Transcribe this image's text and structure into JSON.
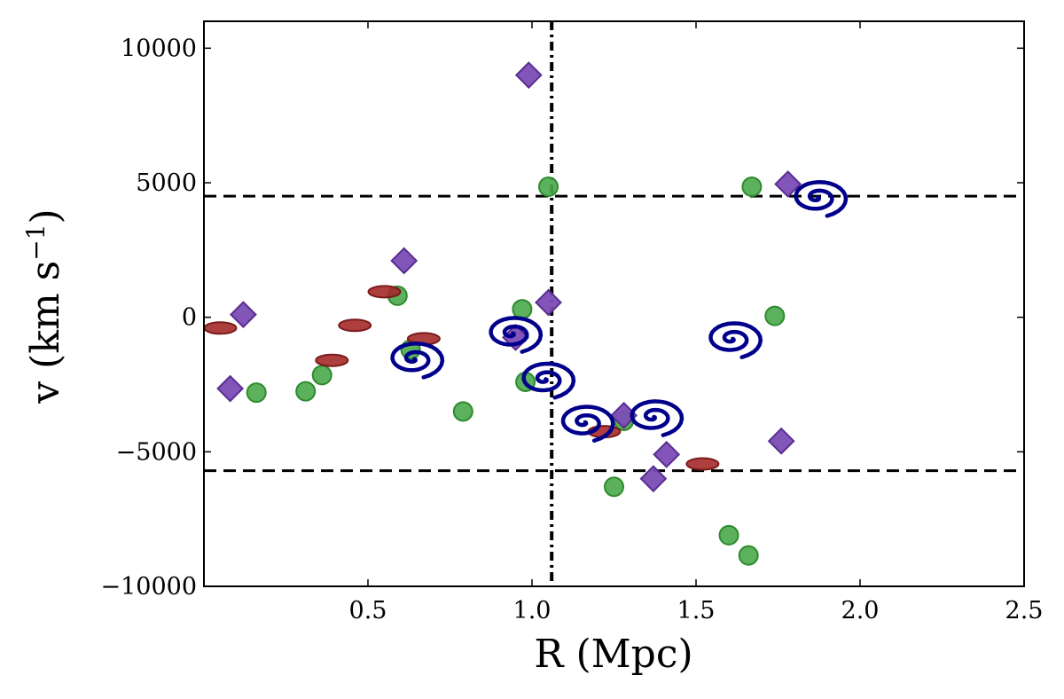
{
  "chart_data": {
    "type": "scatter",
    "title": "",
    "xlabel": "R (Mpc)",
    "ylabel_main": "v (km s",
    "ylabel_sup": "−1",
    "ylabel_close": ")",
    "xlim": [
      0,
      2.5
    ],
    "ylim": [
      -10000,
      11000
    ],
    "x_ticks": [
      0.5,
      1.0,
      1.5,
      2.0,
      2.5
    ],
    "x_tick_labels": [
      "0.5",
      "1.0",
      "1.5",
      "2.0",
      "2.5"
    ],
    "y_ticks": [
      -10000,
      -5000,
      0,
      5000,
      10000
    ],
    "y_tick_labels": [
      "−10000",
      "−5000",
      "0",
      "5000",
      "10000"
    ],
    "grid": false,
    "reference_lines": {
      "horizontal_dashed": [
        4500,
        -5700
      ],
      "vertical_dashdot": [
        1.06
      ]
    },
    "series": [
      {
        "marker": "circle",
        "color": "#4aa84a",
        "points": [
          [
            0.16,
            -2800
          ],
          [
            0.31,
            -2750
          ],
          [
            0.36,
            -2150
          ],
          [
            0.59,
            800
          ],
          [
            0.63,
            -1200
          ],
          [
            0.79,
            -3500
          ],
          [
            0.97,
            300
          ],
          [
            0.98,
            -2400
          ],
          [
            1.05,
            4850
          ],
          [
            1.25,
            -6300
          ],
          [
            1.28,
            -3850
          ],
          [
            1.6,
            -8100
          ],
          [
            1.66,
            -8850
          ],
          [
            1.67,
            4850
          ],
          [
            1.74,
            50
          ]
        ]
      },
      {
        "marker": "diamond",
        "color": "#7b4db5",
        "points": [
          [
            0.08,
            -2650
          ],
          [
            0.12,
            100
          ],
          [
            0.61,
            2100
          ],
          [
            0.95,
            -750
          ],
          [
            0.99,
            9000
          ],
          [
            1.05,
            550
          ],
          [
            1.28,
            -3650
          ],
          [
            1.37,
            -6000
          ],
          [
            1.41,
            -5100
          ],
          [
            1.76,
            -4600
          ],
          [
            1.78,
            4950
          ]
        ]
      },
      {
        "marker": "ellipse",
        "color": "#a52a2a",
        "points": [
          [
            0.05,
            -400
          ],
          [
            0.39,
            -1600
          ],
          [
            0.46,
            -300
          ],
          [
            0.55,
            950
          ],
          [
            0.67,
            -800
          ],
          [
            1.22,
            -4250
          ],
          [
            1.52,
            -5450
          ]
        ]
      },
      {
        "marker": "spiral",
        "color": "#00008b",
        "points": [
          [
            0.64,
            -1550
          ],
          [
            0.94,
            -600
          ],
          [
            1.04,
            -2300
          ],
          [
            1.16,
            -3900
          ],
          [
            1.37,
            -3700
          ],
          [
            1.61,
            -800
          ],
          [
            1.87,
            4450
          ]
        ]
      }
    ]
  }
}
